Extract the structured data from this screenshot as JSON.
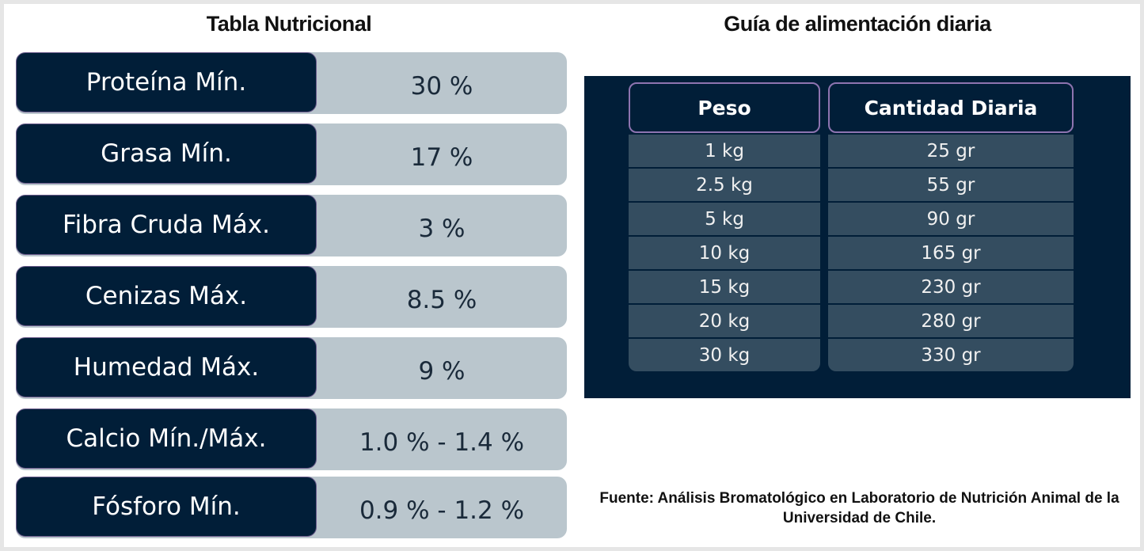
{
  "nutrition": {
    "title": "Tabla Nutricional",
    "rows": [
      {
        "label": "Proteína Mín.",
        "value": "30 %"
      },
      {
        "label": "Grasa Mín.",
        "value": "17 %"
      },
      {
        "label": "Fibra Cruda Máx.",
        "value": "3 %"
      },
      {
        "label": "Cenizas Máx.",
        "value": "8.5 %"
      },
      {
        "label": "Humedad Máx.",
        "value": "9 %"
      },
      {
        "label": "Calcio Mín./Máx.",
        "value": "1.0 % - 1.4 %"
      },
      {
        "label": "Fósforo Mín.",
        "value": "0.9 % - 1.2 %"
      }
    ]
  },
  "feeding": {
    "title": "Guía de alimentación diaria",
    "headers": [
      "Peso",
      "Cantidad Diaria"
    ],
    "rows": [
      [
        "1 kg",
        "25 gr"
      ],
      [
        "2.5 kg",
        "55 gr"
      ],
      [
        "5 kg",
        "90 gr"
      ],
      [
        "10 kg",
        "165 gr"
      ],
      [
        "15 kg",
        "230 gr"
      ],
      [
        "20 kg",
        "280 gr"
      ],
      [
        "30 kg",
        "330 gr"
      ]
    ]
  },
  "source": "Fuente: Análisis Bromatológico en Laboratorio de Nutrición Animal de la Universidad de Chile."
}
